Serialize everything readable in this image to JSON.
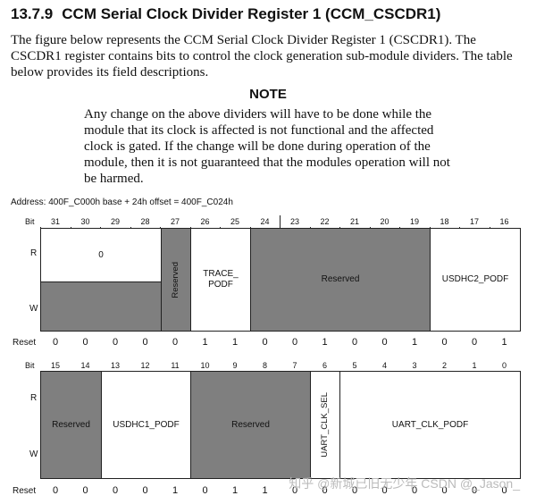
{
  "section": {
    "number": "13.7.9",
    "title": "CCM Serial Clock Divider Register 1 (CCM_CSCDR1)"
  },
  "intro": "The figure below represents the CCM Serial Clock Divider Register 1 (CSCDR1). The CSCDR1 register contains bits to control the clock generation sub-module dividers. The table below provides its field descriptions.",
  "note": {
    "title": "NOTE",
    "body": "Any change on the above dividers will have to be done while the module that its clock is affected is not functional and the affected clock is gated. If the change will be done during operation of the module, then it is not guaranteed that the modules operation will not be harmed."
  },
  "address": "Address: 400F_C000h base + 24h offset = 400F_C024h",
  "labels": {
    "bit": "Bit",
    "r": "R",
    "w": "W",
    "reset": "Reset"
  },
  "upper": {
    "bits": [
      "31",
      "30",
      "29",
      "28",
      "27",
      "26",
      "25",
      "24",
      "23",
      "22",
      "21",
      "20",
      "19",
      "18",
      "17",
      "16"
    ],
    "reset": [
      "0",
      "0",
      "0",
      "0",
      "0",
      "1",
      "1",
      "0",
      "0",
      "1",
      "0",
      "0",
      "1",
      "0",
      "0",
      "1"
    ],
    "fields": {
      "zero_field": "0",
      "reserved_27": "Reserved",
      "trace_podf": "TRACE_\nPODF",
      "reserved_24_19": "Reserved",
      "usdhc2_podf": "USDHC2_PODF"
    }
  },
  "lower": {
    "bits": [
      "15",
      "14",
      "13",
      "12",
      "11",
      "10",
      "9",
      "8",
      "7",
      "6",
      "5",
      "4",
      "3",
      "2",
      "1",
      "0"
    ],
    "reset": [
      "0",
      "0",
      "0",
      "0",
      "1",
      "0",
      "1",
      "1",
      "0",
      "0",
      "0",
      "0",
      "0",
      "0",
      "0",
      "0"
    ],
    "fields": {
      "reserved_15_14": "Reserved",
      "usdhc1_podf": "USDHC1_PODF",
      "reserved_10_7": "Reserved",
      "uart_clk_sel": "UART_CLK_SEL",
      "uart_clk_podf": "UART_CLK_PODF"
    }
  },
  "watermark": "知乎 @新城已旧无少年 CSDN @_Jason_"
}
